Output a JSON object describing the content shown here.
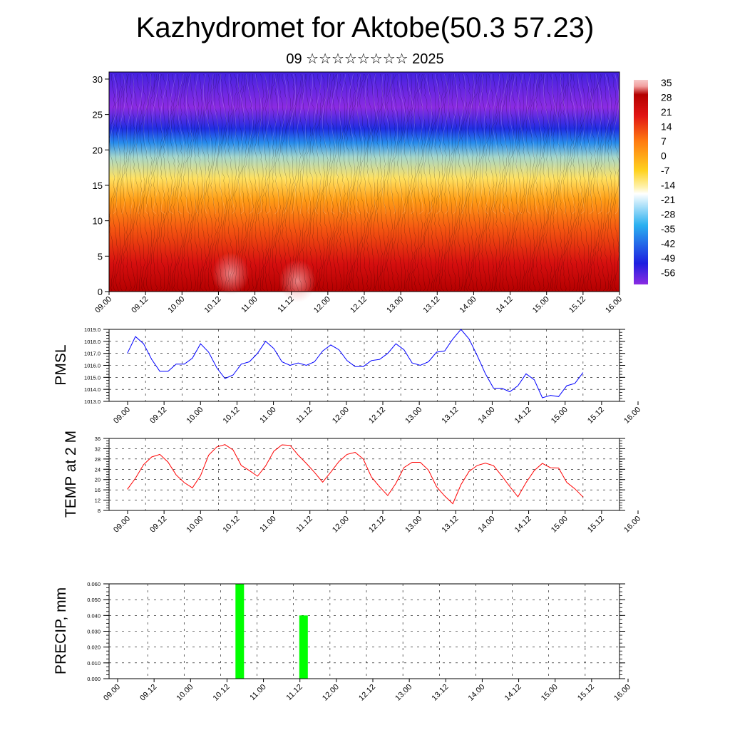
{
  "header": {
    "title": "Kazhydromet for Aktobe(50.3 57.23)",
    "subtitle": "09 ☆☆☆☆☆☆☆☆ 2025"
  },
  "time_ticks": [
    "09.00",
    "09.12",
    "10.00",
    "10.12",
    "11.00",
    "11.12",
    "12.00",
    "12.12",
    "13.00",
    "13.12",
    "14.00",
    "14.12",
    "15.00",
    "15.12",
    "16.00"
  ],
  "chart_data": [
    {
      "id": "cross_section",
      "type": "heatmap",
      "title": "",
      "ylim": [
        0,
        31
      ],
      "y_ticks": [
        0,
        5,
        10,
        15,
        20,
        25,
        30
      ],
      "x_ticks": [
        "09.00",
        "09.12",
        "10.00",
        "10.12",
        "11.00",
        "11.12",
        "12.00",
        "12.12",
        "13.00",
        "13.12",
        "14.00",
        "14.12",
        "15.00",
        "15.12",
        "16.00"
      ],
      "colorbar_labels": [
        "35",
        "28",
        "21",
        "14",
        "7",
        "0",
        "-7",
        "-14",
        "-21",
        "-28",
        "-35",
        "-42",
        "-49",
        "-56"
      ],
      "colors": {
        "magenta": "#8b2be2",
        "blue": "#1e1ee0",
        "cyan": "#2ab0f0",
        "pale": "#fff3b0",
        "yellow": "#ffd21e",
        "orange": "#ff7a10",
        "red": "#e11414",
        "dark_red": "#b40000",
        "pink": "#f2a0a0"
      },
      "profile": [
        {
          "level": 0,
          "temp": 30
        },
        {
          "level": 4,
          "temp": 24
        },
        {
          "level": 9,
          "temp": 14
        },
        {
          "level": 13,
          "temp": 4
        },
        {
          "level": 16,
          "temp": -10
        },
        {
          "level": 19,
          "temp": -22
        },
        {
          "level": 21,
          "temp": -35
        },
        {
          "level": 23,
          "temp": -48
        },
        {
          "level": 26,
          "temp": -56
        },
        {
          "level": 31,
          "temp": -52
        }
      ]
    },
    {
      "id": "pmsl",
      "type": "line",
      "ylabel": "PMSL",
      "ylim": [
        1013.0,
        1019.0
      ],
      "y_ticks": [
        "1013.0",
        "1014.0",
        "1015.0",
        "1016.0",
        "1017.0",
        "1018.0",
        "1019.0"
      ],
      "x_ticks": [
        "09.00",
        "09.12",
        "10.00",
        "10.12",
        "11.00",
        "11.12",
        "12.00",
        "12.12",
        "13.00",
        "13.12",
        "14.00",
        "14.12",
        "15.00",
        "15.12",
        "16.00"
      ],
      "color": "#0000ff",
      "values": [
        1017.0,
        1018.4,
        1017.8,
        1016.5,
        1015.5,
        1015.5,
        1016.1,
        1016.1,
        1016.6,
        1017.8,
        1017.1,
        1015.8,
        1014.9,
        1015.2,
        1016.1,
        1016.3,
        1017.0,
        1018.0,
        1017.4,
        1016.3,
        1016.0,
        1016.2,
        1016.0,
        1016.3,
        1017.2,
        1017.7,
        1017.3,
        1016.4,
        1015.9,
        1015.9,
        1016.4,
        1016.5,
        1017.0,
        1017.8,
        1017.3,
        1016.2,
        1016.0,
        1016.3,
        1017.1,
        1017.2,
        1018.2,
        1019.0,
        1018.2,
        1016.8,
        1015.3,
        1014.1,
        1014.1,
        1013.8,
        1014.3,
        1015.3,
        1014.8,
        1013.3,
        1013.5,
        1013.4,
        1014.3,
        1014.5,
        1015.4
      ]
    },
    {
      "id": "temp",
      "type": "line",
      "ylabel": "TEMP at 2 M",
      "ylim": [
        8,
        36
      ],
      "y_ticks": [
        "8",
        "12",
        "16",
        "20",
        "24",
        "28",
        "32",
        "36"
      ],
      "x_ticks": [
        "09.00",
        "09.12",
        "10.00",
        "10.12",
        "11.00",
        "11.12",
        "12.00",
        "12.12",
        "13.00",
        "13.12",
        "14.00",
        "14.12",
        "15.00",
        "15.12",
        "16.00"
      ],
      "color": "#ff0000",
      "values": [
        16.2,
        20.5,
        25.8,
        28.8,
        29.8,
        26.8,
        21.8,
        18.8,
        16.8,
        21.5,
        29.5,
        32.7,
        33.6,
        31.5,
        25.5,
        23.5,
        21.3,
        25.3,
        31.0,
        33.5,
        33.3,
        29.5,
        26.3,
        22.8,
        19.0,
        22.9,
        27.0,
        29.8,
        30.6,
        28.0,
        21.0,
        17.2,
        13.8,
        18.5,
        24.7,
        26.7,
        26.7,
        23.7,
        17.2,
        13.6,
        10.6,
        18.0,
        23.2,
        25.5,
        26.4,
        25.4,
        21.5,
        17.3,
        13.3,
        18.8,
        23.5,
        26.3,
        24.6,
        24.5,
        18.9,
        16.4,
        13.2
      ]
    },
    {
      "id": "precip",
      "type": "bar",
      "ylabel": "PRECIP, mm",
      "ylim": [
        0.0,
        0.06
      ],
      "y_ticks": [
        "0.000",
        "0.010",
        "0.020",
        "0.030",
        "0.040",
        "0.050",
        "0.060"
      ],
      "x_ticks": [
        "09.00",
        "09.12",
        "10.00",
        "10.12",
        "11.00",
        "11.12",
        "12.00",
        "12.12",
        "13.00",
        "13.12",
        "14.00",
        "14.12",
        "15.00",
        "15.12",
        "16.00"
      ],
      "color": "#00ff00",
      "bars": [
        {
          "time_hours": 43,
          "value": 0.06
        },
        {
          "time_hours": 64,
          "value": 0.04
        }
      ]
    }
  ]
}
